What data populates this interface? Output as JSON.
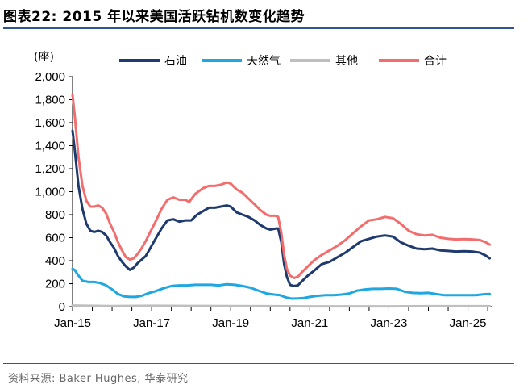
{
  "header": {
    "title": "图表22:  2015 年以来美国活跃钻机数变化趋势"
  },
  "footer": {
    "source": "资料来源:  Baker Hughes,  华泰研究"
  },
  "chart_data": {
    "type": "line",
    "ylabel": "(座)",
    "ylim": [
      0,
      2000
    ],
    "yticks": [
      "0",
      "200",
      "400",
      "600",
      "800",
      "1,000",
      "1,200",
      "1,400",
      "1,600",
      "1,800",
      "2,000"
    ],
    "xlim": [
      2015.0,
      2025.6
    ],
    "xticks": [
      {
        "label": "Jan-15",
        "value": 2015.0
      },
      {
        "label": "Jan-17",
        "value": 2017.0
      },
      {
        "label": "Jan-19",
        "value": 2019.0
      },
      {
        "label": "Jan-21",
        "value": 2021.0
      },
      {
        "label": "Jan-23",
        "value": 2023.0
      },
      {
        "label": "Jan-25",
        "value": 2025.0
      }
    ],
    "legend_position": "top",
    "series": [
      {
        "name": "石油",
        "color": "#1f3a6e",
        "points": [
          [
            2015.0,
            1530
          ],
          [
            2015.05,
            1380
          ],
          [
            2015.15,
            1050
          ],
          [
            2015.25,
            850
          ],
          [
            2015.35,
            720
          ],
          [
            2015.45,
            660
          ],
          [
            2015.55,
            650
          ],
          [
            2015.65,
            660
          ],
          [
            2015.75,
            650
          ],
          [
            2015.85,
            620
          ],
          [
            2015.95,
            560
          ],
          [
            2016.05,
            510
          ],
          [
            2016.15,
            440
          ],
          [
            2016.25,
            390
          ],
          [
            2016.35,
            350
          ],
          [
            2016.45,
            320
          ],
          [
            2016.55,
            340
          ],
          [
            2016.65,
            380
          ],
          [
            2016.75,
            410
          ],
          [
            2016.85,
            440
          ],
          [
            2016.95,
            500
          ],
          [
            2017.1,
            590
          ],
          [
            2017.25,
            680
          ],
          [
            2017.4,
            750
          ],
          [
            2017.55,
            760
          ],
          [
            2017.7,
            740
          ],
          [
            2017.85,
            750
          ],
          [
            2018.0,
            750
          ],
          [
            2018.15,
            800
          ],
          [
            2018.3,
            830
          ],
          [
            2018.45,
            860
          ],
          [
            2018.6,
            860
          ],
          [
            2018.75,
            870
          ],
          [
            2018.9,
            880
          ],
          [
            2019.0,
            870
          ],
          [
            2019.15,
            820
          ],
          [
            2019.3,
            800
          ],
          [
            2019.45,
            780
          ],
          [
            2019.6,
            750
          ],
          [
            2019.75,
            710
          ],
          [
            2019.9,
            680
          ],
          [
            2020.0,
            670
          ],
          [
            2020.15,
            680
          ],
          [
            2020.2,
            680
          ],
          [
            2020.28,
            560
          ],
          [
            2020.35,
            370
          ],
          [
            2020.42,
            260
          ],
          [
            2020.5,
            190
          ],
          [
            2020.6,
            180
          ],
          [
            2020.7,
            185
          ],
          [
            2020.8,
            220
          ],
          [
            2020.95,
            270
          ],
          [
            2021.1,
            310
          ],
          [
            2021.3,
            370
          ],
          [
            2021.5,
            390
          ],
          [
            2021.7,
            430
          ],
          [
            2021.9,
            470
          ],
          [
            2022.1,
            520
          ],
          [
            2022.3,
            570
          ],
          [
            2022.5,
            590
          ],
          [
            2022.7,
            610
          ],
          [
            2022.9,
            620
          ],
          [
            2023.1,
            610
          ],
          [
            2023.3,
            560
          ],
          [
            2023.5,
            530
          ],
          [
            2023.7,
            505
          ],
          [
            2023.9,
            500
          ],
          [
            2024.1,
            505
          ],
          [
            2024.3,
            490
          ],
          [
            2024.5,
            485
          ],
          [
            2024.7,
            480
          ],
          [
            2024.9,
            482
          ],
          [
            2025.1,
            480
          ],
          [
            2025.3,
            470
          ],
          [
            2025.45,
            445
          ],
          [
            2025.55,
            420
          ]
        ]
      },
      {
        "name": "天然气",
        "color": "#1ea7e1",
        "points": [
          [
            2015.0,
            330
          ],
          [
            2015.05,
            320
          ],
          [
            2015.15,
            270
          ],
          [
            2015.25,
            225
          ],
          [
            2015.4,
            215
          ],
          [
            2015.55,
            215
          ],
          [
            2015.7,
            205
          ],
          [
            2015.85,
            185
          ],
          [
            2016.0,
            150
          ],
          [
            2016.15,
            110
          ],
          [
            2016.3,
            90
          ],
          [
            2016.45,
            85
          ],
          [
            2016.6,
            85
          ],
          [
            2016.75,
            95
          ],
          [
            2016.9,
            115
          ],
          [
            2017.1,
            135
          ],
          [
            2017.3,
            160
          ],
          [
            2017.5,
            180
          ],
          [
            2017.7,
            185
          ],
          [
            2017.9,
            185
          ],
          [
            2018.1,
            190
          ],
          [
            2018.3,
            190
          ],
          [
            2018.5,
            190
          ],
          [
            2018.7,
            185
          ],
          [
            2018.9,
            195
          ],
          [
            2019.1,
            190
          ],
          [
            2019.3,
            180
          ],
          [
            2019.5,
            165
          ],
          [
            2019.7,
            140
          ],
          [
            2019.9,
            115
          ],
          [
            2020.1,
            105
          ],
          [
            2020.25,
            100
          ],
          [
            2020.4,
            80
          ],
          [
            2020.55,
            70
          ],
          [
            2020.7,
            72
          ],
          [
            2020.85,
            76
          ],
          [
            2021.0,
            85
          ],
          [
            2021.2,
            95
          ],
          [
            2021.4,
            100
          ],
          [
            2021.6,
            100
          ],
          [
            2021.8,
            105
          ],
          [
            2022.0,
            115
          ],
          [
            2022.2,
            140
          ],
          [
            2022.4,
            150
          ],
          [
            2022.6,
            155
          ],
          [
            2022.8,
            155
          ],
          [
            2023.0,
            158
          ],
          [
            2023.2,
            155
          ],
          [
            2023.4,
            130
          ],
          [
            2023.6,
            120
          ],
          [
            2023.8,
            118
          ],
          [
            2024.0,
            120
          ],
          [
            2024.2,
            110
          ],
          [
            2024.4,
            100
          ],
          [
            2024.6,
            100
          ],
          [
            2024.8,
            100
          ],
          [
            2025.0,
            100
          ],
          [
            2025.2,
            100
          ],
          [
            2025.4,
            108
          ],
          [
            2025.55,
            110
          ]
        ]
      },
      {
        "name": "其他",
        "color": "#bfbfbf",
        "points": [
          [
            2015.0,
            10
          ],
          [
            2016.0,
            5
          ],
          [
            2017.0,
            8
          ],
          [
            2018.0,
            6
          ],
          [
            2019.0,
            5
          ],
          [
            2020.0,
            4
          ],
          [
            2021.0,
            3
          ],
          [
            2022.0,
            3
          ],
          [
            2023.0,
            3
          ],
          [
            2024.0,
            4
          ],
          [
            2025.55,
            4
          ]
        ]
      },
      {
        "name": "合计",
        "color": "#f26d6d",
        "points": [
          [
            2015.0,
            1840
          ],
          [
            2015.05,
            1680
          ],
          [
            2015.15,
            1300
          ],
          [
            2015.25,
            1050
          ],
          [
            2015.35,
            920
          ],
          [
            2015.45,
            870
          ],
          [
            2015.55,
            870
          ],
          [
            2015.65,
            880
          ],
          [
            2015.75,
            860
          ],
          [
            2015.85,
            810
          ],
          [
            2015.95,
            720
          ],
          [
            2016.05,
            650
          ],
          [
            2016.15,
            560
          ],
          [
            2016.25,
            490
          ],
          [
            2016.35,
            430
          ],
          [
            2016.45,
            410
          ],
          [
            2016.55,
            420
          ],
          [
            2016.65,
            460
          ],
          [
            2016.75,
            510
          ],
          [
            2016.85,
            570
          ],
          [
            2016.95,
            640
          ],
          [
            2017.1,
            740
          ],
          [
            2017.25,
            850
          ],
          [
            2017.4,
            930
          ],
          [
            2017.55,
            950
          ],
          [
            2017.7,
            930
          ],
          [
            2017.85,
            930
          ],
          [
            2017.95,
            910
          ],
          [
            2018.1,
            980
          ],
          [
            2018.3,
            1030
          ],
          [
            2018.45,
            1050
          ],
          [
            2018.6,
            1050
          ],
          [
            2018.75,
            1060
          ],
          [
            2018.9,
            1080
          ],
          [
            2019.0,
            1070
          ],
          [
            2019.15,
            1020
          ],
          [
            2019.3,
            990
          ],
          [
            2019.45,
            940
          ],
          [
            2019.6,
            890
          ],
          [
            2019.75,
            840
          ],
          [
            2019.9,
            800
          ],
          [
            2020.0,
            790
          ],
          [
            2020.15,
            790
          ],
          [
            2020.2,
            780
          ],
          [
            2020.28,
            640
          ],
          [
            2020.35,
            450
          ],
          [
            2020.42,
            330
          ],
          [
            2020.5,
            270
          ],
          [
            2020.6,
            250
          ],
          [
            2020.7,
            260
          ],
          [
            2020.8,
            300
          ],
          [
            2020.95,
            350
          ],
          [
            2021.1,
            400
          ],
          [
            2021.3,
            450
          ],
          [
            2021.5,
            490
          ],
          [
            2021.7,
            530
          ],
          [
            2021.9,
            580
          ],
          [
            2022.1,
            640
          ],
          [
            2022.3,
            700
          ],
          [
            2022.5,
            750
          ],
          [
            2022.7,
            760
          ],
          [
            2022.9,
            780
          ],
          [
            2023.1,
            770
          ],
          [
            2023.3,
            720
          ],
          [
            2023.5,
            660
          ],
          [
            2023.7,
            630
          ],
          [
            2023.9,
            620
          ],
          [
            2024.1,
            625
          ],
          [
            2024.3,
            600
          ],
          [
            2024.5,
            590
          ],
          [
            2024.7,
            585
          ],
          [
            2024.9,
            588
          ],
          [
            2025.1,
            585
          ],
          [
            2025.3,
            580
          ],
          [
            2025.45,
            560
          ],
          [
            2025.55,
            540
          ]
        ]
      }
    ]
  }
}
